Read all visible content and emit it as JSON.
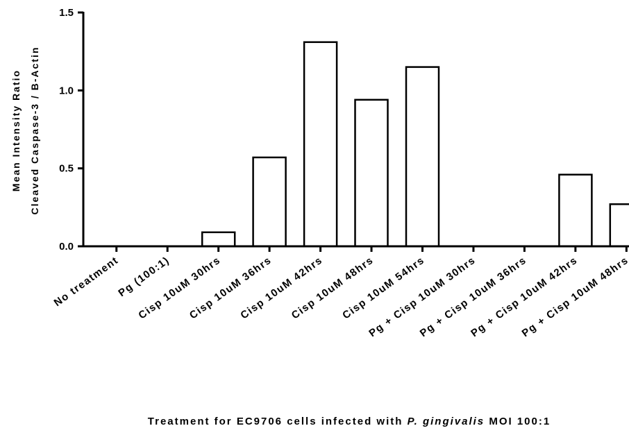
{
  "chart_data": {
    "type": "bar",
    "categories": [
      "No treatment",
      "Pg (100:1)",
      "Cisp 10uM 30hrs",
      "Cisp 10uM 36hrs",
      "Cisp 10uM 42hrs",
      "Cisp 10uM 48hrs",
      "Cisp 10uM 54hrs",
      "Pg + Cisp 10uM 30hrs",
      "Pg + Cisp 10uM 36hrs",
      "Pg + Cisp 10uM 42hrs",
      "Pg + Cisp 10uM 48hrs"
    ],
    "values": [
      0,
      0,
      0.09,
      0.57,
      1.31,
      0.94,
      1.15,
      0,
      0,
      0.46,
      0.27
    ],
    "ylabel_line1": "Mean Intensity Ratio",
    "ylabel_line2": "Cleaved Caspase-3 / B-Actin",
    "xlabel_prefix": "Treatment for EC9706 cells infected with ",
    "xlabel_italic": "P. gingivalis",
    "xlabel_suffix": " MOI 100:1",
    "ylim": [
      0,
      1.5
    ],
    "yticks": [
      0.0,
      0.5,
      1.0,
      1.5
    ],
    "ytick_labels": [
      "0.0",
      "0.5",
      "1.0",
      "1.5"
    ],
    "grid": false,
    "bar_fill": "#ffffff",
    "bar_stroke": "#000000"
  }
}
